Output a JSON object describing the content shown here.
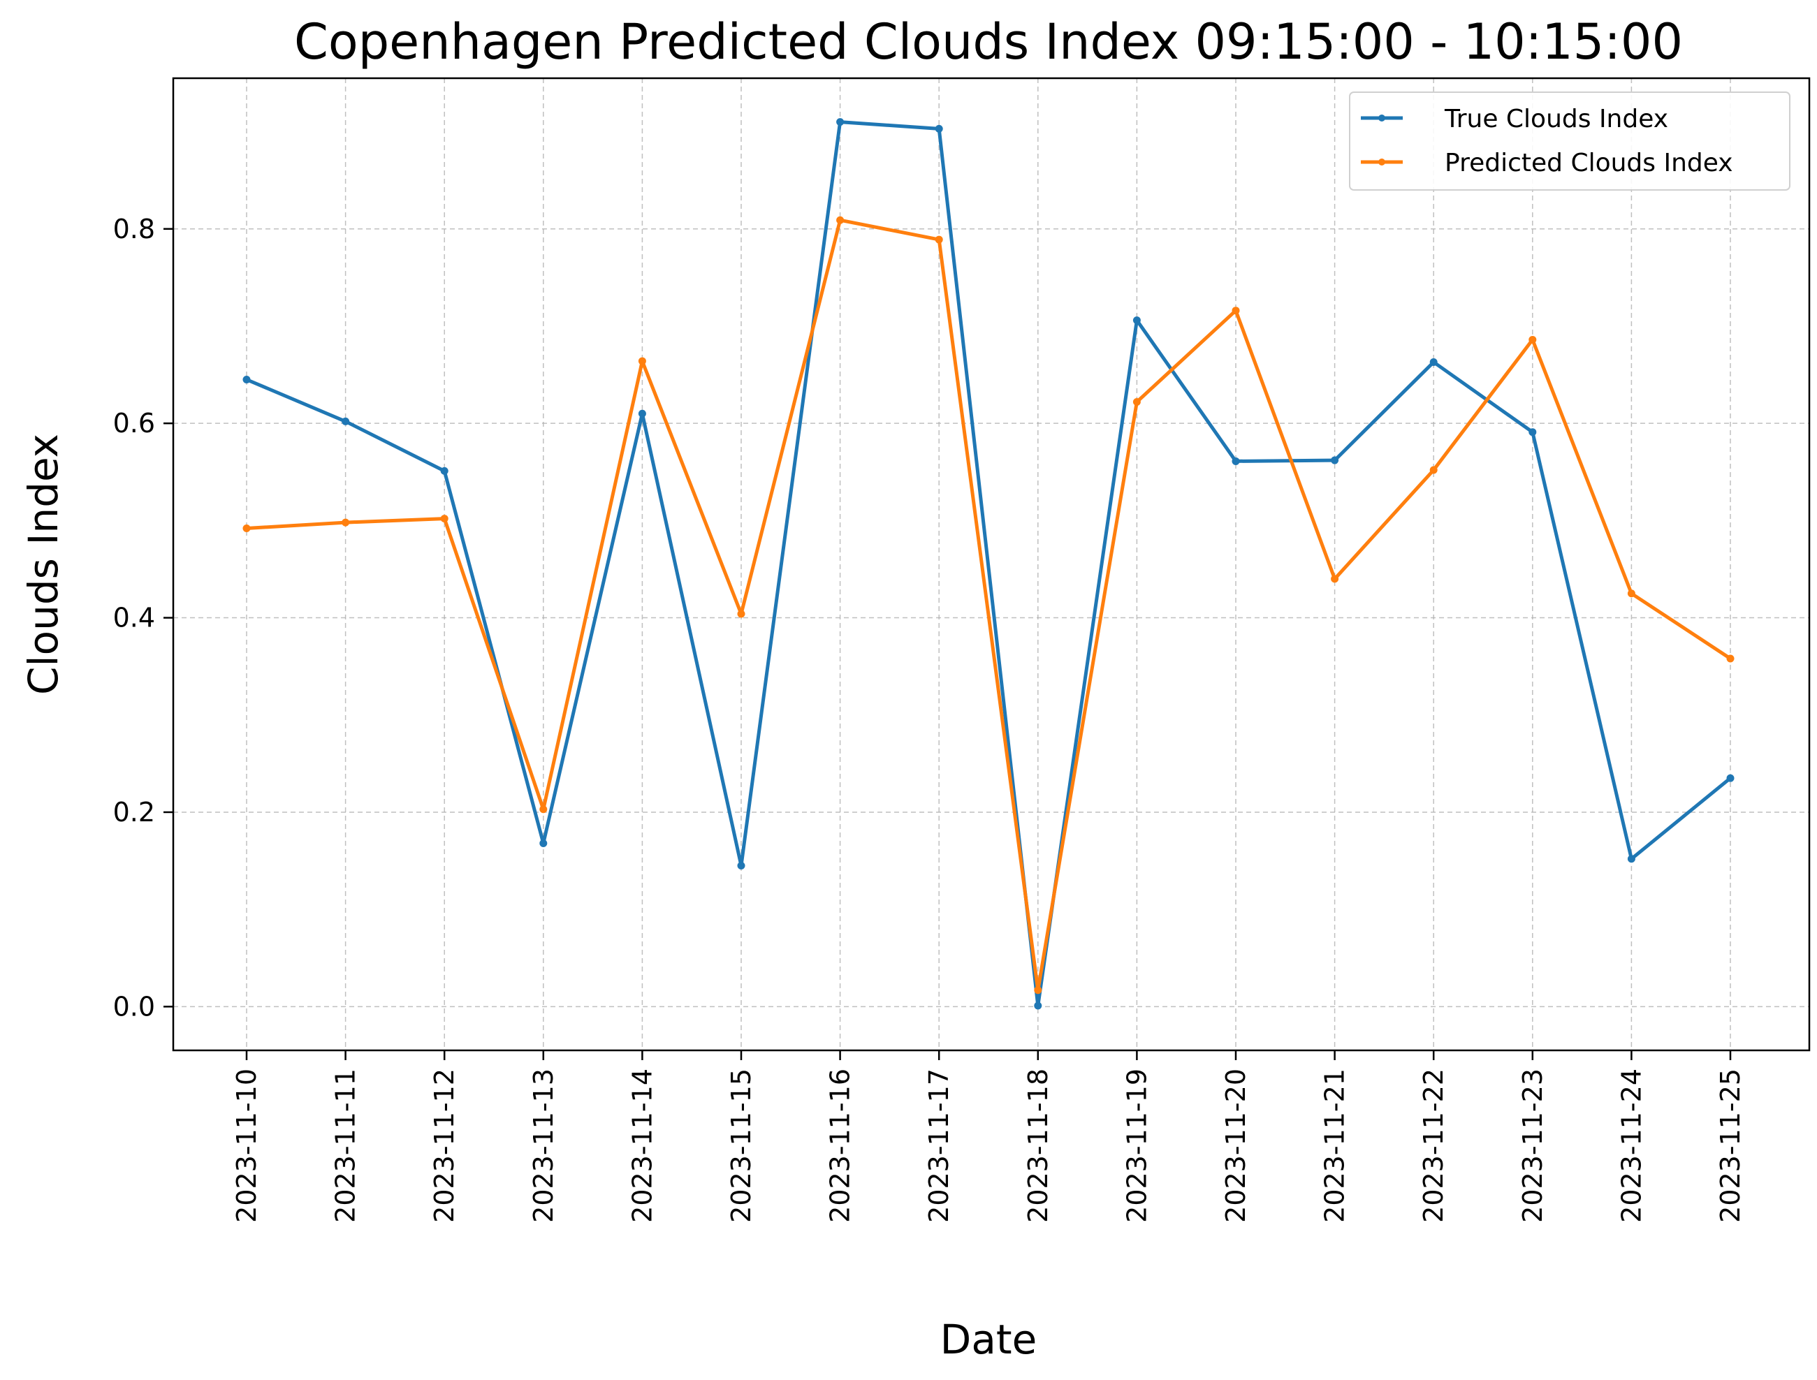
{
  "chart_data": {
    "type": "line",
    "title": "Copenhagen Predicted Clouds Index  09:15:00 - 10:15:00",
    "xlabel": "Date",
    "ylabel": "Clouds Index",
    "categories": [
      "2023-11-10",
      "2023-11-11",
      "2023-11-12",
      "2023-11-13",
      "2023-11-14",
      "2023-11-15",
      "2023-11-16",
      "2023-11-17",
      "2023-11-18",
      "2023-11-19",
      "2023-11-20",
      "2023-11-21",
      "2023-11-22",
      "2023-11-23",
      "2023-11-24",
      "2023-11-25"
    ],
    "series": [
      {
        "name": "True Clouds Index",
        "color": "#1f77b4",
        "values": [
          0.645,
          0.602,
          0.551,
          0.168,
          0.61,
          0.145,
          0.91,
          0.903,
          0.001,
          0.706,
          0.561,
          0.562,
          0.663,
          0.591,
          0.152,
          0.235
        ]
      },
      {
        "name": "Predicted Clouds Index",
        "color": "#ff7f0e",
        "values": [
          0.492,
          0.498,
          0.502,
          0.203,
          0.664,
          0.404,
          0.809,
          0.789,
          0.017,
          0.622,
          0.716,
          0.44,
          0.552,
          0.686,
          0.425,
          0.358
        ]
      }
    ],
    "yticks": [
      "0.0",
      "0.2",
      "0.4",
      "0.6",
      "0.8"
    ],
    "ytick_values": [
      0,
      0.2,
      0.4,
      0.6,
      0.8
    ],
    "ylim": [
      -0.045,
      0.955
    ],
    "grid": true,
    "legend_position": "top-right"
  }
}
